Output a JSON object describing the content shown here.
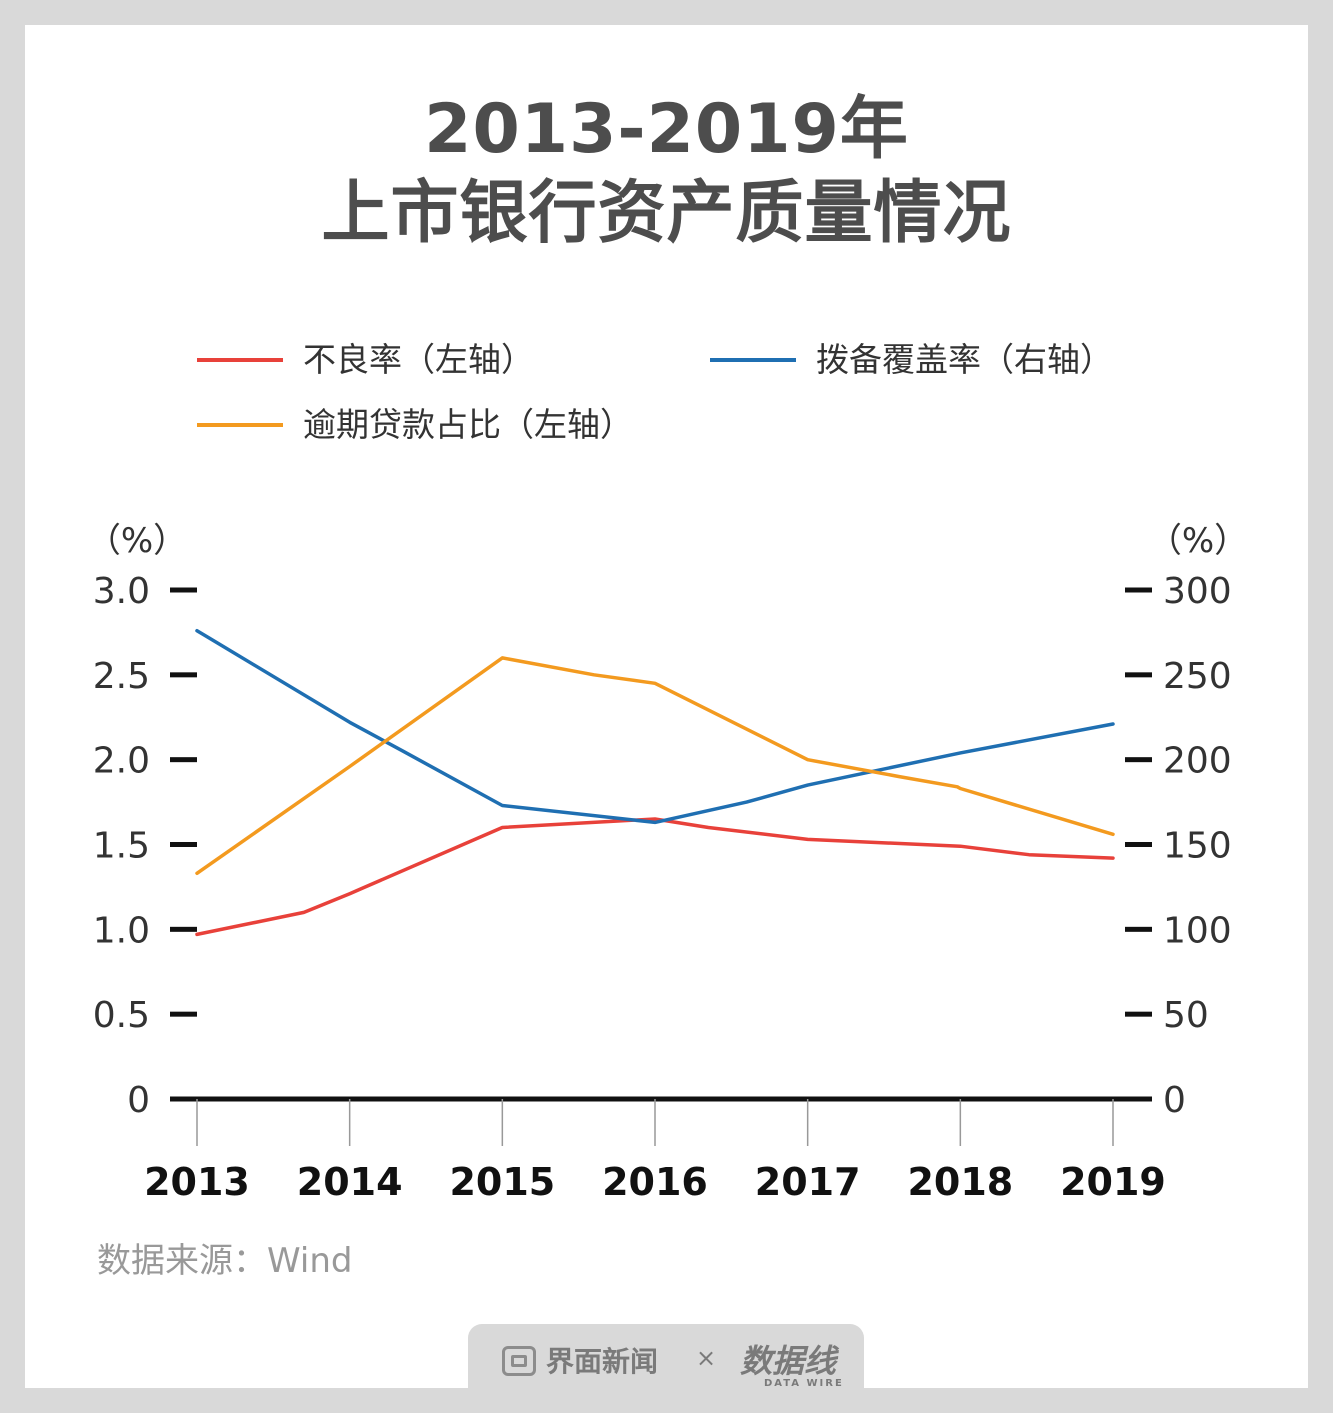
{
  "title": {
    "line1": "2013-2019年",
    "line2": "上市银行资产质量情况"
  },
  "legend": [
    {
      "label": "不良率（左轴）",
      "color": "#e8413a"
    },
    {
      "label": "拨备覆盖率（右轴）",
      "color": "#1f6fb2"
    },
    {
      "label": "逾期贷款占比（左轴）",
      "color": "#f39a1f"
    }
  ],
  "chart_data": {
    "type": "line",
    "categories": [
      "2013",
      "2014",
      "2015",
      "2016",
      "2017",
      "2018",
      "2019"
    ],
    "x": [
      2013,
      2013.7,
      2014,
      2014.35,
      2015,
      2016,
      2016.35,
      2016.6,
      2017,
      2017.6,
      2017.98,
      2018,
      2018.45,
      2019
    ],
    "left_axis": {
      "unit_label": "（%）",
      "ticks": [
        "3.0",
        "2.5",
        "2.0",
        "1.5",
        "1.0",
        "0.5",
        "0"
      ],
      "range": [
        0,
        3.0
      ]
    },
    "right_axis": {
      "unit_label": "（%）",
      "ticks": [
        "300",
        "250",
        "200",
        "150",
        "100",
        "50",
        "0"
      ],
      "range": [
        0,
        300
      ]
    },
    "series": [
      {
        "name": "不良率（左轴）",
        "axis": "left",
        "points": [
          [
            2013,
            0.97
          ],
          [
            2013.7,
            1.1
          ],
          [
            2014,
            1.21
          ],
          [
            2015,
            1.6
          ],
          [
            2016,
            1.65
          ],
          [
            2016.35,
            1.6
          ],
          [
            2017,
            1.53
          ],
          [
            2018,
            1.49
          ],
          [
            2018.45,
            1.44
          ],
          [
            2019,
            1.42
          ]
        ]
      },
      {
        "name": "拨备覆盖率（右轴）",
        "axis": "right",
        "points": [
          [
            2013,
            276
          ],
          [
            2014,
            222
          ],
          [
            2014.35,
            205
          ],
          [
            2015,
            173
          ],
          [
            2016,
            163
          ],
          [
            2016.6,
            175
          ],
          [
            2017,
            185
          ],
          [
            2018,
            204
          ],
          [
            2019,
            221
          ]
        ]
      },
      {
        "name": "逾期贷款占比（左轴）",
        "axis": "left",
        "points": [
          [
            2013,
            1.33
          ],
          [
            2014,
            1.96
          ],
          [
            2015,
            2.6
          ],
          [
            2015.6,
            2.5
          ],
          [
            2016,
            2.45
          ],
          [
            2017,
            2.0
          ],
          [
            2017.6,
            1.9
          ],
          [
            2017.98,
            1.84
          ],
          [
            2018,
            1.83
          ],
          [
            2019,
            1.56
          ]
        ]
      }
    ]
  },
  "source": "数据来源：Wind",
  "footer": {
    "brand": "界面新闻",
    "separator": "×",
    "partner": "数据线",
    "partner_sub": "DATA WIRE"
  }
}
